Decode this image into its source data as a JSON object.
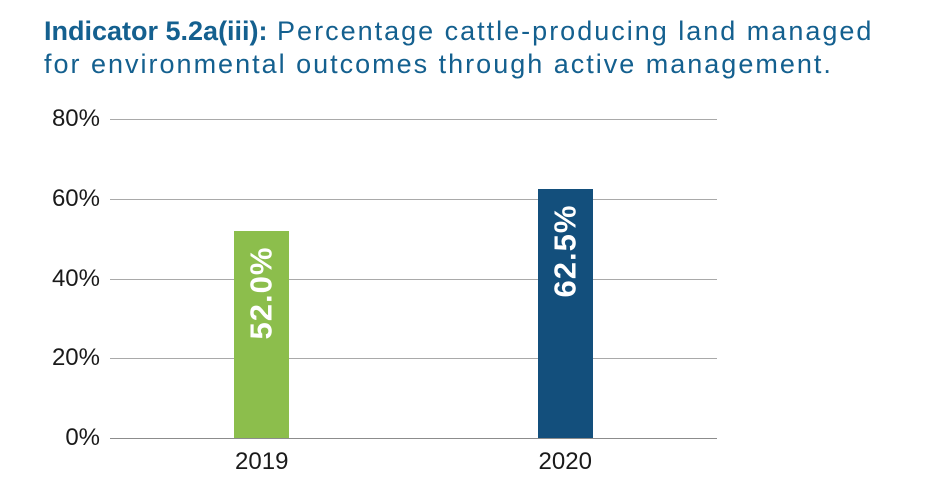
{
  "chart_data": {
    "type": "bar",
    "title_bold": "Indicator 5.2a(iii):",
    "title_rest_line1": " Percentage cattle-producing land managed",
    "title_line2": "for environmental outcomes through active management.",
    "categories": [
      "2019",
      "2020"
    ],
    "values": [
      52.0,
      62.5
    ],
    "bar_labels": [
      "52.0%",
      "62.5%"
    ],
    "bar_colors": [
      "#8CBE4C",
      "#134F7C"
    ],
    "y_ticks": [
      "0%",
      "20%",
      "40%",
      "60%",
      "80%"
    ],
    "ylim": [
      0,
      80
    ],
    "grid": true,
    "title_color": "#14608F"
  }
}
